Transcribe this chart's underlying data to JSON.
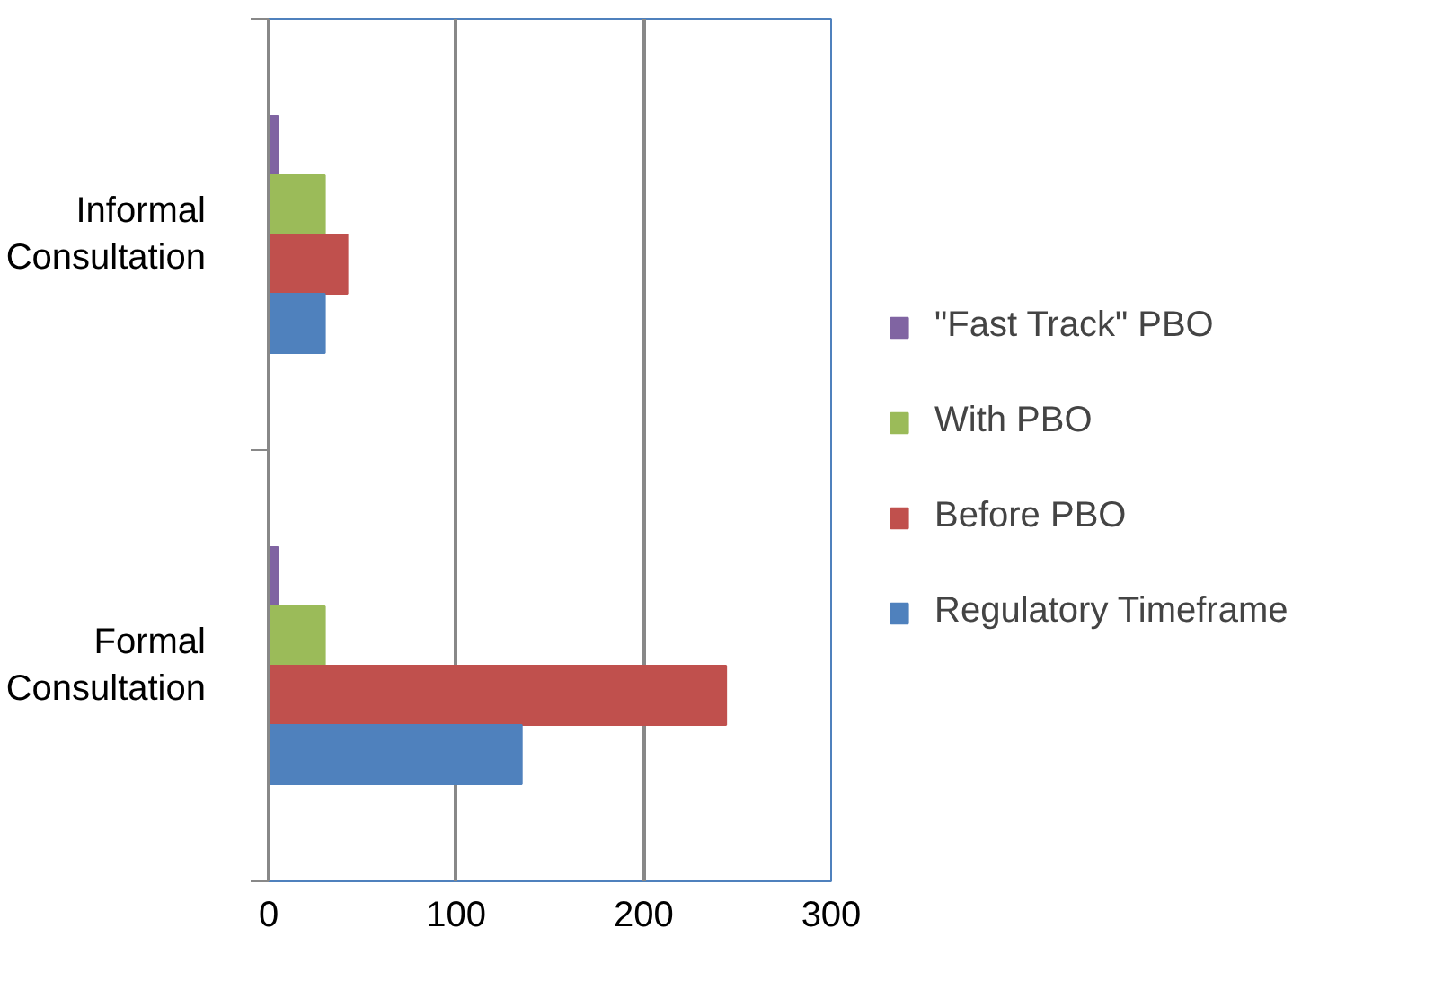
{
  "chart_data": {
    "type": "bar",
    "orientation": "horizontal",
    "categories": [
      "Informal Consultation",
      "Formal Consultation"
    ],
    "series": [
      {
        "name": "\"Fast Track\" PBO",
        "color": "#8064a2",
        "values": [
          5,
          5
        ]
      },
      {
        "name": "With PBO",
        "color": "#9bbb59",
        "values": [
          30,
          30
        ]
      },
      {
        "name": "Before PBO",
        "color": "#c0504d",
        "values": [
          42,
          244
        ]
      },
      {
        "name": "Regulatory Timeframe",
        "color": "#4f81bd",
        "values": [
          30,
          135
        ]
      }
    ],
    "xlim": [
      0,
      300
    ],
    "xticks": [
      0,
      100,
      200,
      300
    ],
    "grid": "x",
    "legend": "right"
  }
}
